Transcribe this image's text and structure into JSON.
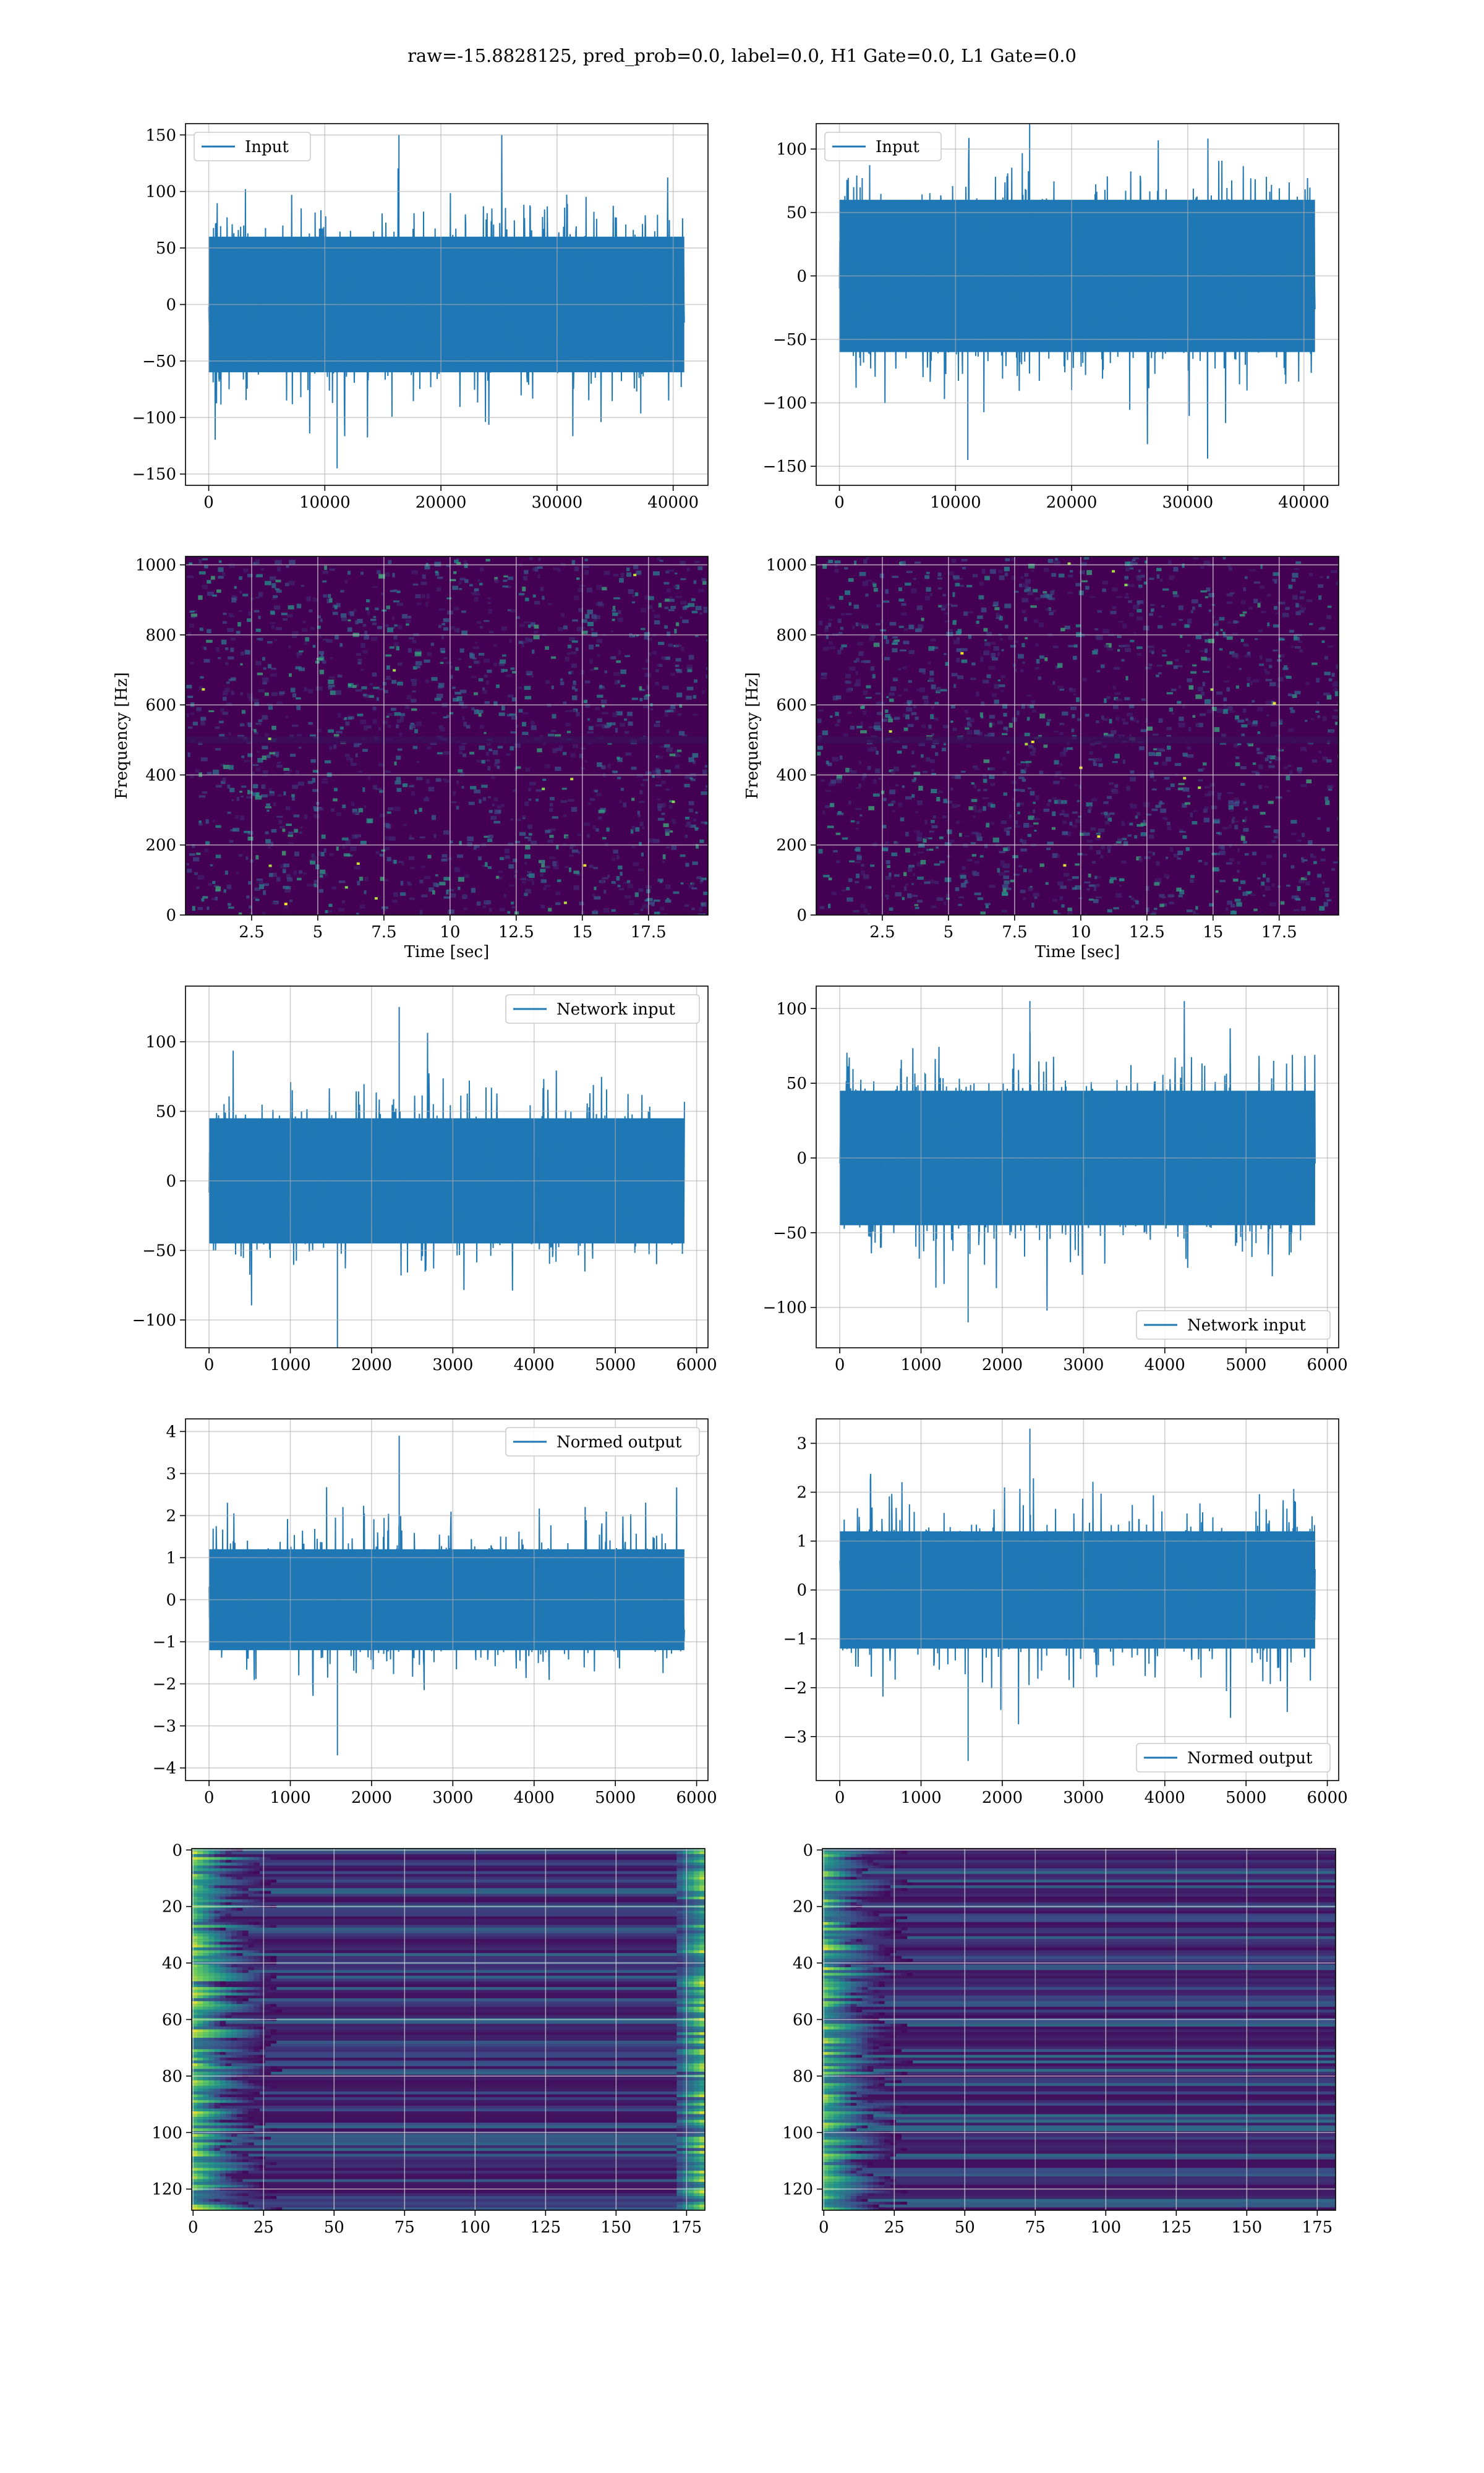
{
  "figure_title": "raw=-15.8828125, pred_prob=0.0, label=0.0, H1 Gate=0.0, L1 Gate=0.0",
  "colors": {
    "series": "#1f77b4",
    "grid": "#b0b0b0",
    "spec_background": "#440154",
    "spec_mid": "#31688e",
    "spec_high": "#35b779",
    "spec_peak": "#fde725"
  },
  "chart_data": [
    {
      "id": "h1-input",
      "type": "line",
      "series": [
        {
          "name": "Input",
          "envelope": {
            "x_range": [
              0,
              40960
            ],
            "core_amplitude": 60,
            "max": 150,
            "min": -145
          }
        }
      ],
      "xlim": [
        -2000,
        43000
      ],
      "ylim": [
        -160,
        160
      ],
      "xticks": [
        0,
        10000,
        20000,
        30000,
        40000
      ],
      "yticks": [
        -150,
        -100,
        -50,
        0,
        50,
        100,
        150
      ],
      "xlabel": "",
      "ylabel": "",
      "legend": "upper left",
      "grid": true
    },
    {
      "id": "l1-input",
      "type": "line",
      "series": [
        {
          "name": "Input",
          "envelope": {
            "x_range": [
              0,
              40960
            ],
            "core_amplitude": 60,
            "max": 130,
            "min": -145
          }
        }
      ],
      "xlim": [
        -2000,
        43000
      ],
      "ylim": [
        -165,
        120
      ],
      "xticks": [
        0,
        10000,
        20000,
        30000,
        40000
      ],
      "yticks": [
        -150,
        -100,
        -50,
        0,
        50,
        100
      ],
      "xlabel": "",
      "ylabel": "",
      "legend": "upper left",
      "grid": true
    },
    {
      "id": "h1-spectrogram",
      "type": "heatmap",
      "xlim": [
        0,
        19.75
      ],
      "ylim": [
        0,
        1024
      ],
      "xticks": [
        2.5,
        5.0,
        7.5,
        10.0,
        12.5,
        15.0,
        17.5
      ],
      "yticks": [
        0,
        200,
        400,
        600,
        800,
        1000
      ],
      "xlabel": "Time [sec]",
      "ylabel": "Frequency [Hz]",
      "colormap": "viridis",
      "grid": true,
      "dark_band_hz": [
        490,
        510
      ]
    },
    {
      "id": "l1-spectrogram",
      "type": "heatmap",
      "xlim": [
        0,
        19.75
      ],
      "ylim": [
        0,
        1024
      ],
      "xticks": [
        2.5,
        5.0,
        7.5,
        10.0,
        12.5,
        15.0,
        17.5
      ],
      "yticks": [
        0,
        200,
        400,
        600,
        800,
        1000
      ],
      "xlabel": "Time [sec]",
      "ylabel": "Frequency [Hz]",
      "colormap": "viridis",
      "grid": true,
      "dark_band_hz": [
        490,
        510
      ]
    },
    {
      "id": "h1-network-input",
      "type": "line",
      "series": [
        {
          "name": "Network input",
          "envelope": {
            "x_range": [
              0,
              5850
            ],
            "core_amplitude": 45,
            "max": 125,
            "min": -120
          }
        }
      ],
      "xlim": [
        -290,
        6140
      ],
      "ylim": [
        -120,
        140
      ],
      "xticks": [
        0,
        1000,
        2000,
        3000,
        4000,
        5000,
        6000
      ],
      "yticks": [
        -100,
        -50,
        0,
        50,
        100
      ],
      "xlabel": "",
      "ylabel": "",
      "legend": "upper right",
      "grid": true
    },
    {
      "id": "l1-network-input",
      "type": "line",
      "series": [
        {
          "name": "Network input",
          "envelope": {
            "x_range": [
              0,
              5850
            ],
            "core_amplitude": 45,
            "max": 105,
            "min": -110
          }
        }
      ],
      "xlim": [
        -290,
        6140
      ],
      "ylim": [
        -127,
        115
      ],
      "xticks": [
        0,
        1000,
        2000,
        3000,
        4000,
        5000,
        6000
      ],
      "yticks": [
        -100,
        -50,
        0,
        50,
        100
      ],
      "xlabel": "",
      "ylabel": "",
      "legend": "lower right",
      "grid": true
    },
    {
      "id": "h1-normed-output",
      "type": "line",
      "series": [
        {
          "name": "Normed output",
          "envelope": {
            "x_range": [
              0,
              5850
            ],
            "core_amplitude": 1.2,
            "max": 3.9,
            "min": -3.7
          }
        }
      ],
      "xlim": [
        -290,
        6140
      ],
      "ylim": [
        -4.3,
        4.3
      ],
      "xticks": [
        0,
        1000,
        2000,
        3000,
        4000,
        5000,
        6000
      ],
      "yticks": [
        -4,
        -3,
        -2,
        -1,
        0,
        1,
        2,
        3,
        4
      ],
      "xlabel": "",
      "ylabel": "",
      "legend": "upper right",
      "grid": true
    },
    {
      "id": "l1-normed-output",
      "type": "line",
      "series": [
        {
          "name": "Normed output",
          "envelope": {
            "x_range": [
              0,
              5850
            ],
            "core_amplitude": 1.2,
            "max": 3.3,
            "min": -3.5
          }
        }
      ],
      "xlim": [
        -290,
        6140
      ],
      "ylim": [
        -3.9,
        3.5
      ],
      "xticks": [
        0,
        1000,
        2000,
        3000,
        4000,
        5000,
        6000
      ],
      "yticks": [
        -3,
        -2,
        -1,
        0,
        1,
        2,
        3
      ],
      "xlabel": "",
      "ylabel": "",
      "legend": "lower right",
      "grid": true
    },
    {
      "id": "h1-feature-map",
      "type": "heatmap",
      "xlim": [
        -0.5,
        181.5
      ],
      "ylim": [
        127.5,
        -0.5
      ],
      "xticks": [
        0,
        25,
        50,
        75,
        100,
        125,
        150,
        175
      ],
      "yticks": [
        0,
        20,
        40,
        60,
        80,
        100,
        120
      ],
      "xlabel": "",
      "ylabel": "",
      "colormap": "viridis",
      "grid": true,
      "bright_columns": "both edges"
    },
    {
      "id": "l1-feature-map",
      "type": "heatmap",
      "xlim": [
        -0.5,
        181.5
      ],
      "ylim": [
        127.5,
        -0.5
      ],
      "xticks": [
        0,
        25,
        50,
        75,
        100,
        125,
        150,
        175
      ],
      "yticks": [
        0,
        20,
        40,
        60,
        80,
        100,
        120
      ],
      "xlabel": "",
      "ylabel": "",
      "colormap": "viridis",
      "grid": true,
      "bright_columns": "left edge"
    }
  ]
}
